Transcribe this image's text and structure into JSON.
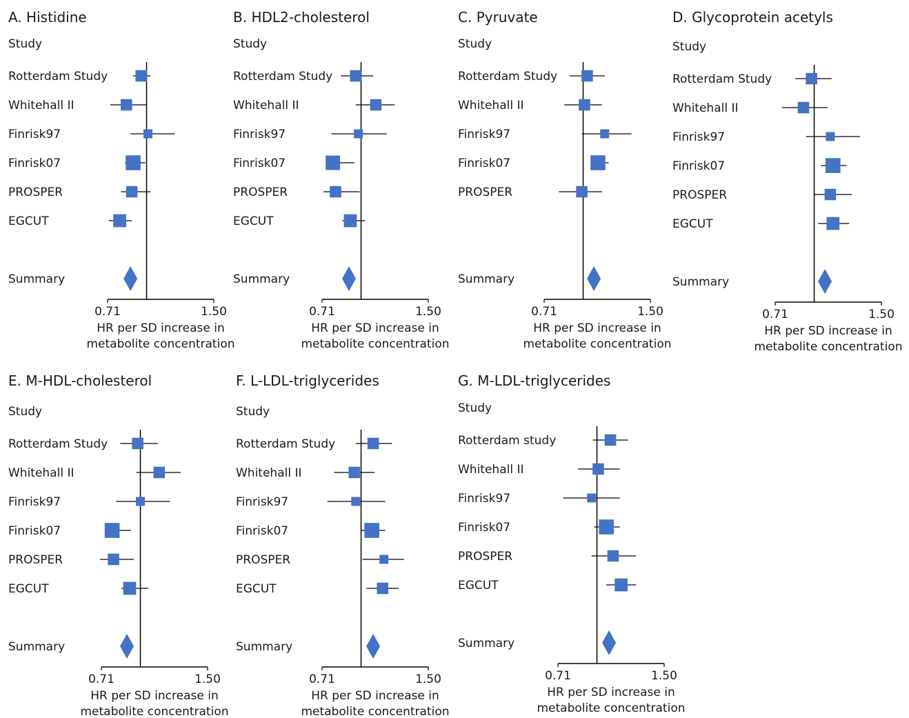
{
  "figure": {
    "colors": {
      "marker": "#4472c4",
      "line": "#000000",
      "text": "#1a1a1a"
    }
  },
  "chart_data": [
    {
      "type": "forest",
      "panel_letter": "A.",
      "title": "Histidine",
      "column_header": "Study",
      "reference_line": 1.0,
      "xlim": [
        0.71,
        1.5
      ],
      "x_ticks": [
        "0.71",
        "1.50"
      ],
      "xlabel": [
        "HR per SD increase in",
        "metabolite concentration"
      ],
      "studies": [
        {
          "label": "Rotterdam Study",
          "hr": 0.96,
          "ci": [
            0.9,
            1.03
          ],
          "weight": 2.3
        },
        {
          "label": "Whitehall II",
          "hr": 0.85,
          "ci": [
            0.73,
            1.0
          ],
          "weight": 2.3
        },
        {
          "label": "Finrisk97",
          "hr": 1.01,
          "ci": [
            0.88,
            1.21
          ],
          "weight": 1.8
        },
        {
          "label": "Finrisk07",
          "hr": 0.9,
          "ci": [
            0.84,
            0.99
          ],
          "weight": 3.0
        },
        {
          "label": "PROSPER",
          "hr": 0.89,
          "ci": [
            0.81,
            1.03
          ],
          "weight": 2.3
        },
        {
          "label": "EGCUT",
          "hr": 0.8,
          "ci": [
            0.72,
            0.89
          ],
          "weight": 2.6
        }
      ],
      "summary": {
        "label": "Summary",
        "hr": 0.88,
        "ci": [
          0.84,
          0.92
        ]
      }
    },
    {
      "type": "forest",
      "panel_letter": "B.",
      "title": "HDL2-cholesterol",
      "column_header": "Study",
      "reference_line": 1.0,
      "xlim": [
        0.71,
        1.5
      ],
      "x_ticks": [
        "0.71",
        "1.50"
      ],
      "xlabel": [
        "HR per SD increase in",
        "metabolite concentration"
      ],
      "studies": [
        {
          "label": "Rotterdam Study",
          "hr": 0.96,
          "ci": [
            0.85,
            1.09
          ],
          "weight": 2.3
        },
        {
          "label": "Whitehall II",
          "hr": 1.11,
          "ci": [
            0.96,
            1.25
          ],
          "weight": 2.3
        },
        {
          "label": "Finrisk97",
          "hr": 0.98,
          "ci": [
            0.78,
            1.19
          ],
          "weight": 1.8
        },
        {
          "label": "Finrisk07",
          "hr": 0.79,
          "ci": [
            0.76,
            0.95
          ],
          "weight": 2.9
        },
        {
          "label": "PROSPER",
          "hr": 0.81,
          "ci": [
            0.72,
            0.99
          ],
          "weight": 2.3
        },
        {
          "label": "EGCUT",
          "hr": 0.92,
          "ci": [
            0.86,
            1.03
          ],
          "weight": 2.6
        }
      ],
      "summary": {
        "label": "Summary",
        "hr": 0.91,
        "ci": [
          0.86,
          0.96
        ]
      }
    },
    {
      "type": "forest",
      "panel_letter": "C.",
      "title": "Pyruvate",
      "column_header": "Study",
      "reference_line": 1.0,
      "xlim": [
        0.71,
        1.5
      ],
      "x_ticks": [
        "0.71",
        "1.50"
      ],
      "xlabel": [
        "HR per SD increase in",
        "metabolite concentration"
      ],
      "studies": [
        {
          "label": "Rotterdam Study",
          "hr": 1.03,
          "ci": [
            0.9,
            1.16
          ],
          "weight": 2.3
        },
        {
          "label": "Whitehall II",
          "hr": 1.01,
          "ci": [
            0.86,
            1.14
          ],
          "weight": 2.3
        },
        {
          "label": "Finrisk97",
          "hr": 1.16,
          "ci": [
            0.99,
            1.36
          ],
          "weight": 1.8
        },
        {
          "label": "Finrisk07",
          "hr": 1.11,
          "ci": [
            1.06,
            1.19
          ],
          "weight": 3.0
        },
        {
          "label": "PROSPER",
          "hr": 0.99,
          "ci": [
            0.82,
            1.14
          ],
          "weight": 2.3
        }
      ],
      "summary": {
        "label": "Summary",
        "hr": 1.08,
        "ci": [
          1.03,
          1.13
        ]
      }
    },
    {
      "type": "forest",
      "panel_letter": "D.",
      "title": "Glycoprotein acetyls",
      "column_header": "Study",
      "reference_line": 1.0,
      "xlim": [
        0.71,
        1.5
      ],
      "x_ticks": [
        "0.71",
        "1.50"
      ],
      "xlabel": [
        "HR per SD increase in",
        "metabolite concentration"
      ],
      "studies": [
        {
          "label": "Rotterdam Study",
          "hr": 0.98,
          "ci": [
            0.86,
            1.13
          ],
          "weight": 2.3
        },
        {
          "label": "Whitehall II",
          "hr": 0.92,
          "ci": [
            0.76,
            1.1
          ],
          "weight": 2.3
        },
        {
          "label": "Finrisk97",
          "hr": 1.12,
          "ci": [
            0.94,
            1.34
          ],
          "weight": 1.8
        },
        {
          "label": "Finrisk07",
          "hr": 1.14,
          "ci": [
            1.05,
            1.24
          ],
          "weight": 3.0
        },
        {
          "label": "PROSPER",
          "hr": 1.12,
          "ci": [
            1.0,
            1.28
          ],
          "weight": 2.3
        },
        {
          "label": "EGCUT",
          "hr": 1.14,
          "ci": [
            1.03,
            1.26
          ],
          "weight": 2.6
        }
      ],
      "summary": {
        "label": "Summary",
        "hr": 1.08,
        "ci": [
          1.03,
          1.13
        ]
      }
    },
    {
      "type": "forest",
      "panel_letter": "E.",
      "title": "M-HDL-cholesterol",
      "column_header": "Study",
      "reference_line": 1.0,
      "xlim": [
        0.71,
        1.5
      ],
      "x_ticks": [
        "0.71",
        "1.50"
      ],
      "xlabel": [
        "HR per SD increase in",
        "metabolite concentration"
      ],
      "studies": [
        {
          "label": "Rotterdam Study",
          "hr": 0.98,
          "ci": [
            0.85,
            1.13
          ],
          "weight": 2.3
        },
        {
          "label": "Whitehall II",
          "hr": 1.14,
          "ci": [
            0.97,
            1.3
          ],
          "weight": 2.3
        },
        {
          "label": "Finrisk97",
          "hr": 1.0,
          "ci": [
            0.82,
            1.22
          ],
          "weight": 1.8
        },
        {
          "label": "Finrisk07",
          "hr": 0.79,
          "ci": [
            0.77,
            0.93
          ],
          "weight": 3.0
        },
        {
          "label": "PROSPER",
          "hr": 0.8,
          "ci": [
            0.7,
            0.95
          ],
          "weight": 2.3
        },
        {
          "label": "EGCUT",
          "hr": 0.92,
          "ci": [
            0.86,
            1.06
          ],
          "weight": 2.6
        }
      ],
      "summary": {
        "label": "Summary",
        "hr": 0.9,
        "ci": [
          0.85,
          0.95
        ]
      }
    },
    {
      "type": "forest",
      "panel_letter": "F.",
      "title": "L-LDL-triglycerides",
      "column_header": "Study",
      "reference_line": 1.0,
      "xlim": [
        0.71,
        1.5
      ],
      "x_ticks": [
        "0.71",
        "1.50"
      ],
      "xlabel": [
        "HR per SD increase in",
        "metabolite concentration"
      ],
      "studies": [
        {
          "label": "Rotterdam Study",
          "hr": 1.09,
          "ci": [
            0.96,
            1.23
          ],
          "weight": 2.3
        },
        {
          "label": "Whitehall II",
          "hr": 0.95,
          "ci": [
            0.8,
            1.1
          ],
          "weight": 2.3
        },
        {
          "label": "Finrisk97",
          "hr": 0.96,
          "ci": [
            0.75,
            1.18
          ],
          "weight": 1.8
        },
        {
          "label": "Finrisk07",
          "hr": 1.08,
          "ci": [
            1.0,
            1.18
          ],
          "weight": 3.0
        },
        {
          "label": "PROSPER",
          "hr": 1.17,
          "ci": [
            1.01,
            1.32
          ],
          "weight": 1.8
        },
        {
          "label": "EGCUT",
          "hr": 1.16,
          "ci": [
            1.04,
            1.28
          ],
          "weight": 2.3
        }
      ],
      "summary": {
        "label": "Summary",
        "hr": 1.09,
        "ci": [
          1.04,
          1.14
        ]
      }
    },
    {
      "type": "forest",
      "panel_letter": "G.",
      "title": "M-LDL-triglycerides",
      "column_header": "Study",
      "reference_line": 1.0,
      "xlim": [
        0.71,
        1.5
      ],
      "x_ticks": [
        "0.71",
        "1.50"
      ],
      "xlabel": [
        "HR per SD increase in",
        "metabolite concentration"
      ],
      "studies": [
        {
          "label": "Rotterdam study",
          "hr": 1.1,
          "ci": [
            0.97,
            1.23
          ],
          "weight": 2.3
        },
        {
          "label": "Whitehall II",
          "hr": 1.01,
          "ci": [
            0.86,
            1.17
          ],
          "weight": 2.3
        },
        {
          "label": "Finrisk97",
          "hr": 0.96,
          "ci": [
            0.75,
            1.17
          ],
          "weight": 1.8
        },
        {
          "label": "Finrisk07",
          "hr": 1.07,
          "ci": [
            0.98,
            1.17
          ],
          "weight": 3.0
        },
        {
          "label": "PROSPER",
          "hr": 1.12,
          "ci": [
            0.96,
            1.29
          ],
          "weight": 2.3
        },
        {
          "label": "EGCUT",
          "hr": 1.18,
          "ci": [
            1.07,
            1.29
          ],
          "weight": 2.6
        }
      ],
      "summary": {
        "label": "Summary",
        "hr": 1.09,
        "ci": [
          1.04,
          1.14
        ]
      }
    }
  ]
}
